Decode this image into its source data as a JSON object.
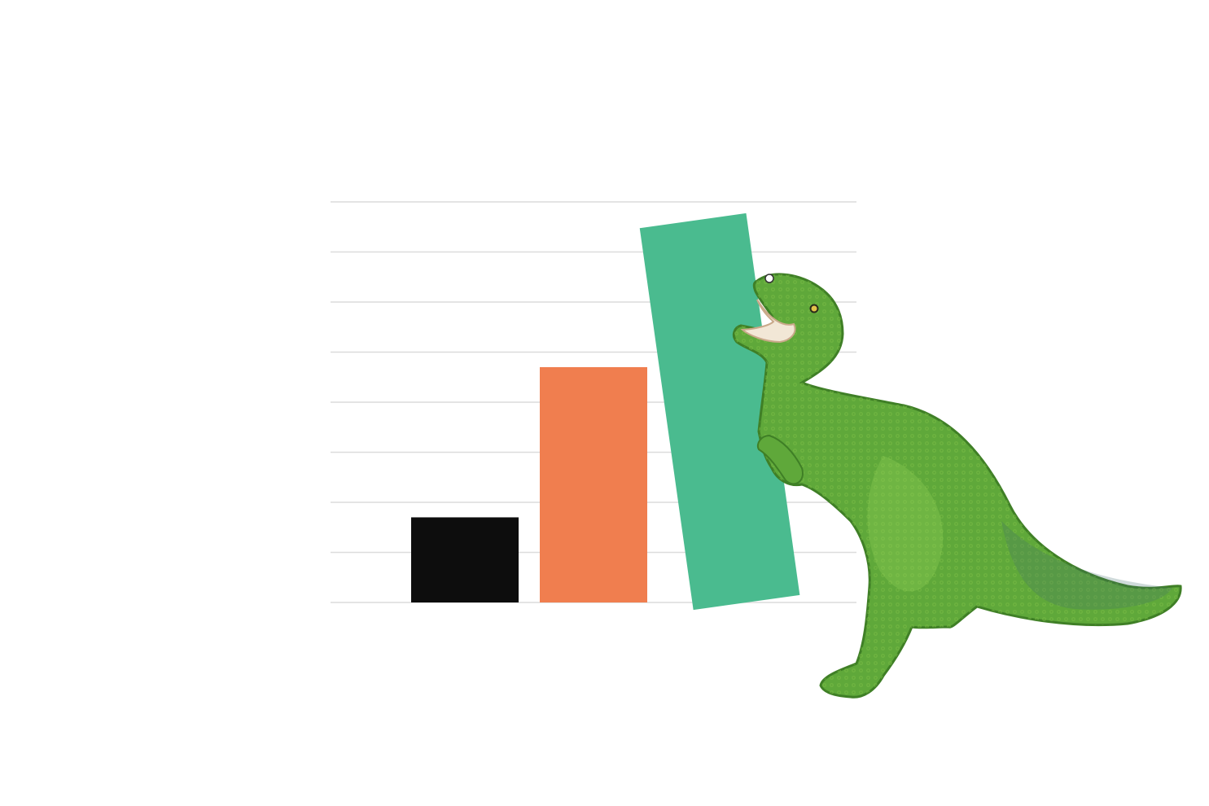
{
  "chart_data": {
    "type": "bar",
    "title": "",
    "xlabel": "",
    "ylabel": "",
    "categories": [
      "",
      "",
      ""
    ],
    "values": [
      1.7,
      4.7,
      7.7
    ],
    "ylim": [
      0,
      8
    ],
    "grid": true,
    "gridline_count": 9,
    "legend": "none",
    "colors": [
      "#0d0d0d",
      "#f07e4f",
      "#4abb8f"
    ],
    "tilted_bar_index": 2,
    "tilt_degrees": -8
  },
  "illustration": {
    "subject": "dinosaur",
    "body_color": "#5fa83a",
    "shade_color": "#3f7f26",
    "highlight_color": "#8fcf55"
  },
  "style": {
    "grid_color": "#dcdcdc",
    "background": "#ffffff"
  }
}
